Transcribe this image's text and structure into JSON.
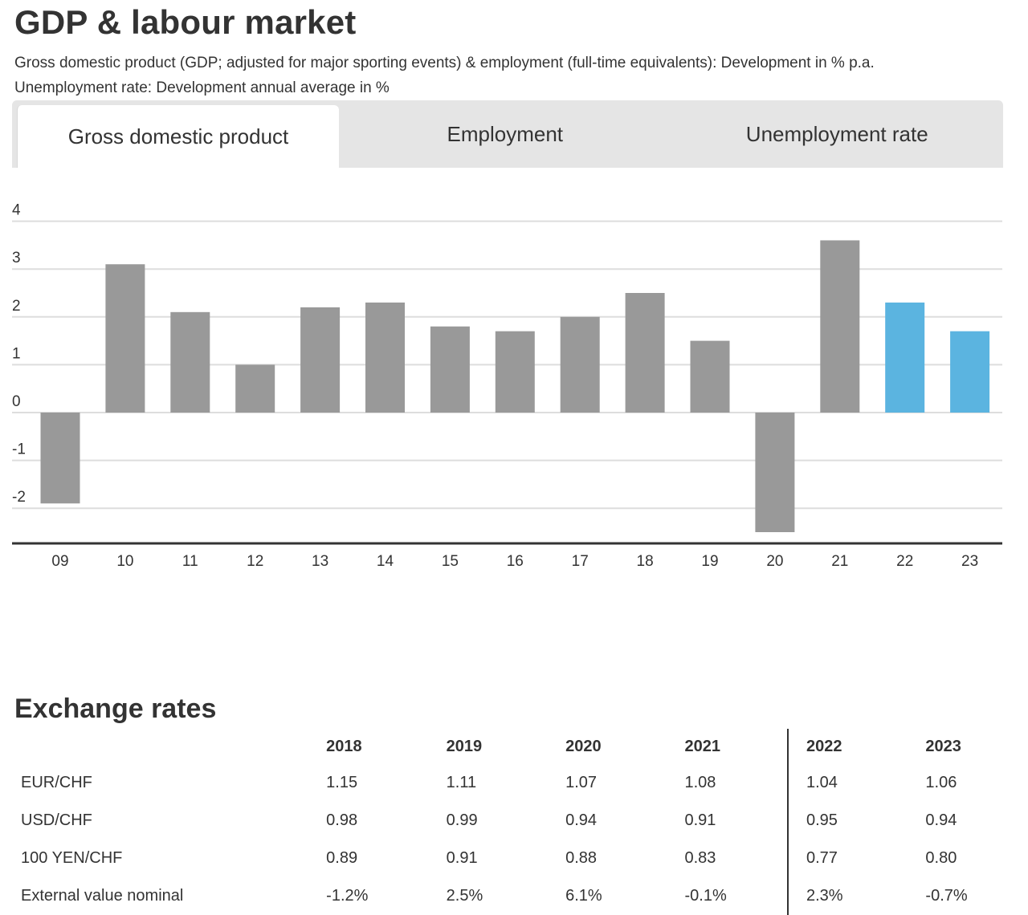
{
  "header": {
    "title": "GDP & labour market",
    "subtitle_line1": "Gross domestic product (GDP; adjusted for major sporting events) & employment (full-time equivalents): Development in % p.a.",
    "subtitle_line2": "Unemployment rate: Development annual average in %"
  },
  "tabs": [
    {
      "label": "Gross domestic product",
      "active": true
    },
    {
      "label": "Employment",
      "active": false
    },
    {
      "label": "Unemployment rate",
      "active": false
    }
  ],
  "colors": {
    "actual": "#999999",
    "forecast": "#5bb4e0",
    "grid": "#dddddd",
    "axis": "#333333"
  },
  "chart_data": {
    "type": "bar",
    "categories": [
      "09",
      "10",
      "11",
      "12",
      "13",
      "14",
      "15",
      "16",
      "17",
      "18",
      "19",
      "20",
      "21",
      "22",
      "23"
    ],
    "values": [
      -1.9,
      3.1,
      2.1,
      1.0,
      2.2,
      2.3,
      1.8,
      1.7,
      2.0,
      2.5,
      1.5,
      -2.5,
      3.6,
      2.3,
      1.7
    ],
    "forecast": [
      false,
      false,
      false,
      false,
      false,
      false,
      false,
      false,
      false,
      false,
      false,
      false,
      false,
      true,
      true
    ],
    "yticks": [
      4,
      3,
      2,
      1,
      0,
      -1,
      -2
    ],
    "ylim": [
      -2.7,
      4
    ],
    "grid": true
  },
  "exchange": {
    "title": "Exchange rates",
    "years": [
      "2018",
      "2019",
      "2020",
      "2021",
      "2022",
      "2023"
    ],
    "rows": [
      {
        "label": "EUR/CHF",
        "values": [
          "1.15",
          "1.11",
          "1.07",
          "1.08",
          "1.04",
          "1.06"
        ]
      },
      {
        "label": "USD/CHF",
        "values": [
          "0.98",
          "0.99",
          "0.94",
          "0.91",
          "0.95",
          "0.94"
        ]
      },
      {
        "label": "100 YEN/CHF",
        "values": [
          "0.89",
          "0.91",
          "0.88",
          "0.83",
          "0.77",
          "0.80"
        ]
      },
      {
        "label": "External value nominal",
        "values": [
          "-1.2%",
          "2.5%",
          "6.1%",
          "-0.1%",
          "2.3%",
          "-0.7%"
        ]
      }
    ]
  }
}
